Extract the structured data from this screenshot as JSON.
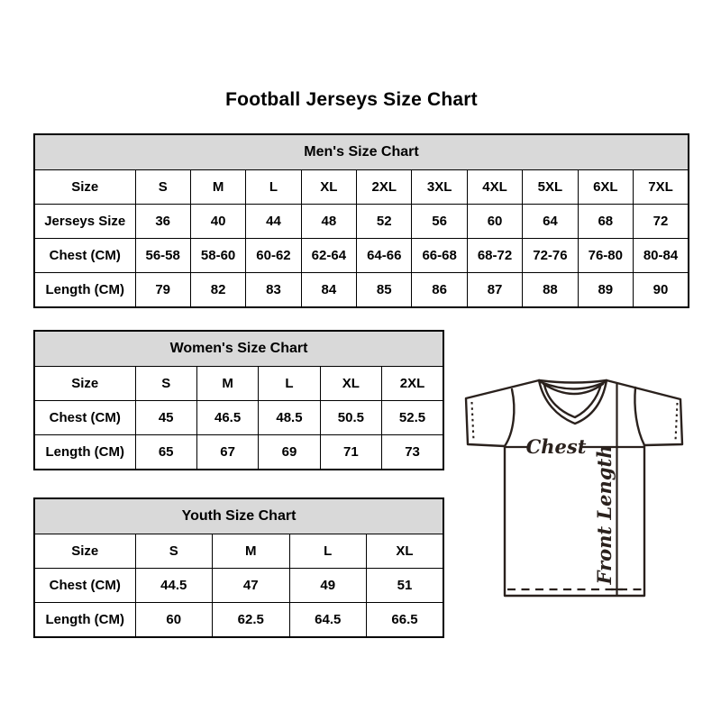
{
  "title": "Football Jerseys Size Chart",
  "colors": {
    "background": "#ffffff",
    "table_header_bg": "#d9d9d9",
    "table_border": "#000000",
    "text": "#000000",
    "diagram_stroke": "#2a211d"
  },
  "chart_data": [
    {
      "type": "table",
      "title": "Men's Size Chart",
      "rows": [
        [
          "Size",
          "S",
          "M",
          "L",
          "XL",
          "2XL",
          "3XL",
          "4XL",
          "5XL",
          "6XL",
          "7XL"
        ],
        [
          "Jerseys Size",
          "36",
          "40",
          "44",
          "48",
          "52",
          "56",
          "60",
          "64",
          "68",
          "72"
        ],
        [
          "Chest (CM)",
          "56-58",
          "58-60",
          "60-62",
          "62-64",
          "64-66",
          "66-68",
          "68-72",
          "72-76",
          "76-80",
          "80-84"
        ],
        [
          "Length (CM)",
          "79",
          "82",
          "83",
          "84",
          "85",
          "86",
          "87",
          "88",
          "89",
          "90"
        ]
      ]
    },
    {
      "type": "table",
      "title": "Women's Size Chart",
      "rows": [
        [
          "Size",
          "S",
          "M",
          "L",
          "XL",
          "2XL"
        ],
        [
          "Chest (CM)",
          "45",
          "46.5",
          "48.5",
          "50.5",
          "52.5"
        ],
        [
          "Length (CM)",
          "65",
          "67",
          "69",
          "71",
          "73"
        ]
      ]
    },
    {
      "type": "table",
      "title": "Youth Size Chart",
      "rows": [
        [
          "Size",
          "S",
          "M",
          "L",
          "XL"
        ],
        [
          "Chest (CM)",
          "44.5",
          "47",
          "49",
          "51"
        ],
        [
          "Length (CM)",
          "60",
          "62.5",
          "64.5",
          "66.5"
        ]
      ]
    }
  ],
  "diagram": {
    "chest_label": "Chest",
    "front_length_label": "Front Length"
  }
}
